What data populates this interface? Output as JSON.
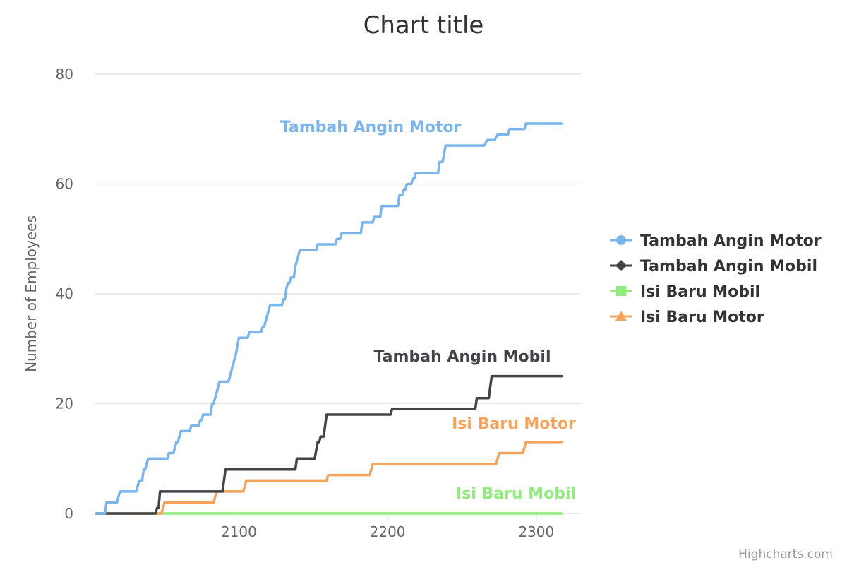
{
  "chart_data": {
    "type": "line",
    "title": "Chart title",
    "xlabel": "",
    "ylabel": "Number of Employees",
    "xlim": [
      2003,
      2330
    ],
    "ylim": [
      0,
      80
    ],
    "x_ticks": [
      2100,
      2200,
      2300
    ],
    "y_ticks": [
      0,
      20,
      40,
      60,
      80
    ],
    "grid": true,
    "legend_position": "right",
    "credits": "Highcharts.com",
    "series": [
      {
        "name": "Tambah Angin Motor",
        "color": "#7cb5ec",
        "marker": "circle",
        "points": [
          [
            2004,
            0
          ],
          [
            2010,
            0
          ],
          [
            2011,
            2
          ],
          [
            2018,
            2
          ],
          [
            2020,
            4
          ],
          [
            2031,
            4
          ],
          [
            2033,
            6
          ],
          [
            2035,
            6
          ],
          [
            2036,
            8
          ],
          [
            2037,
            8
          ],
          [
            2039,
            10
          ],
          [
            2052,
            10
          ],
          [
            2053,
            11
          ],
          [
            2056,
            11
          ],
          [
            2058,
            13
          ],
          [
            2059,
            13
          ],
          [
            2061,
            15
          ],
          [
            2067,
            15
          ],
          [
            2068,
            16
          ],
          [
            2073,
            16
          ],
          [
            2074,
            17
          ],
          [
            2075,
            17
          ],
          [
            2076,
            18
          ],
          [
            2081,
            18
          ],
          [
            2082,
            20
          ],
          [
            2083,
            20
          ],
          [
            2087,
            24
          ],
          [
            2093,
            24
          ],
          [
            2098,
            29
          ],
          [
            2100,
            32
          ],
          [
            2106,
            32
          ],
          [
            2107,
            33
          ],
          [
            2115,
            33
          ],
          [
            2116,
            34
          ],
          [
            2117,
            34
          ],
          [
            2121,
            38
          ],
          [
            2129,
            38
          ],
          [
            2130,
            39
          ],
          [
            2131,
            39
          ],
          [
            2132,
            41
          ],
          [
            2133,
            42
          ],
          [
            2134,
            42
          ],
          [
            2135,
            43
          ],
          [
            2137,
            43
          ],
          [
            2138,
            45
          ],
          [
            2139,
            46
          ],
          [
            2141,
            48
          ],
          [
            2152,
            48
          ],
          [
            2153,
            49
          ],
          [
            2165,
            49
          ],
          [
            2166,
            50
          ],
          [
            2168,
            50
          ],
          [
            2169,
            51
          ],
          [
            2182,
            51
          ],
          [
            2183,
            53
          ],
          [
            2190,
            53
          ],
          [
            2191,
            54
          ],
          [
            2195,
            54
          ],
          [
            2196,
            56
          ],
          [
            2207,
            56
          ],
          [
            2208,
            58
          ],
          [
            2210,
            58
          ],
          [
            2211,
            59
          ],
          [
            2212,
            59
          ],
          [
            2213,
            60
          ],
          [
            2216,
            60
          ],
          [
            2217,
            61
          ],
          [
            2218,
            61
          ],
          [
            2219,
            62
          ],
          [
            2234,
            62
          ],
          [
            2235,
            64
          ],
          [
            2237,
            64
          ],
          [
            2239,
            67
          ],
          [
            2265,
            67
          ],
          [
            2267,
            68
          ],
          [
            2272,
            68
          ],
          [
            2274,
            69
          ],
          [
            2281,
            69
          ],
          [
            2282,
            70
          ],
          [
            2292,
            70
          ],
          [
            2293,
            71
          ],
          [
            2317,
            71
          ]
        ]
      },
      {
        "name": "Tambah Angin Mobil",
        "color": "#434348",
        "marker": "diamond",
        "points": [
          [
            2004,
            0
          ],
          [
            2044,
            0
          ],
          [
            2045,
            1
          ],
          [
            2046,
            1
          ],
          [
            2047,
            4
          ],
          [
            2089,
            4
          ],
          [
            2090,
            6
          ],
          [
            2091,
            8
          ],
          [
            2138,
            8
          ],
          [
            2139,
            10
          ],
          [
            2151,
            10
          ],
          [
            2153,
            13
          ],
          [
            2154,
            13
          ],
          [
            2155,
            14
          ],
          [
            2157,
            14
          ],
          [
            2159,
            18
          ],
          [
            2202,
            18
          ],
          [
            2203,
            19
          ],
          [
            2259,
            19
          ],
          [
            2260,
            21
          ],
          [
            2268,
            21
          ],
          [
            2270,
            25
          ],
          [
            2317,
            25
          ]
        ]
      },
      {
        "name": "Isi Baru Mobil",
        "color": "#90ed7d",
        "marker": "square",
        "points": [
          [
            2004,
            0
          ],
          [
            2317,
            0
          ]
        ]
      },
      {
        "name": "Isi Baru Motor",
        "color": "#f7a35c",
        "marker": "triangle",
        "points": [
          [
            2004,
            0
          ],
          [
            2048,
            0
          ],
          [
            2050,
            2
          ],
          [
            2083,
            2
          ],
          [
            2085,
            4
          ],
          [
            2103,
            4
          ],
          [
            2105,
            6
          ],
          [
            2159,
            6
          ],
          [
            2160,
            7
          ],
          [
            2188,
            7
          ],
          [
            2189,
            8
          ],
          [
            2190,
            9
          ],
          [
            2273,
            9
          ],
          [
            2275,
            11
          ],
          [
            2291,
            11
          ],
          [
            2293,
            13
          ],
          [
            2317,
            13
          ]
        ]
      }
    ]
  },
  "annotations": [
    {
      "text": "Tambah Angin Motor",
      "series": 0
    },
    {
      "text": "Tambah Angin Mobil",
      "series": 1
    },
    {
      "text": "Isi Baru Motor",
      "series": 3
    },
    {
      "text": "Isi Baru Mobil",
      "series": 2
    }
  ]
}
